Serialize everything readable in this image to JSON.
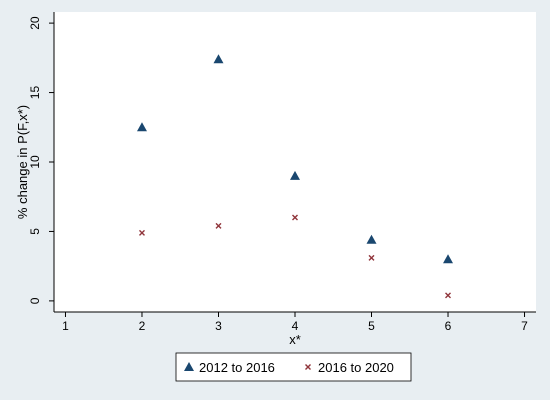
{
  "chart_data": {
    "type": "scatter",
    "title": "",
    "xlabel": "x*",
    "ylabel": "% change in P(F,x*)",
    "xlim": [
      0.85,
      7.15
    ],
    "ylim": [
      -0.8,
      20.8
    ],
    "x_ticks": [
      1,
      2,
      3,
      4,
      5,
      6,
      7
    ],
    "y_ticks": [
      0,
      5,
      10,
      15,
      20
    ],
    "grid": false,
    "legend_position": "bottom",
    "series": [
      {
        "name": "2012 to 2016",
        "marker": "triangle",
        "color": "#1a476f",
        "x": [
          2,
          3,
          4,
          5,
          6
        ],
        "y": [
          12.5,
          17.4,
          9.0,
          4.4,
          3.0
        ]
      },
      {
        "name": "2016 to 2020",
        "marker": "x",
        "color": "#90353b",
        "x": [
          2,
          3,
          4,
          5,
          6
        ],
        "y": [
          4.9,
          5.4,
          6.0,
          3.1,
          0.4
        ]
      }
    ]
  }
}
